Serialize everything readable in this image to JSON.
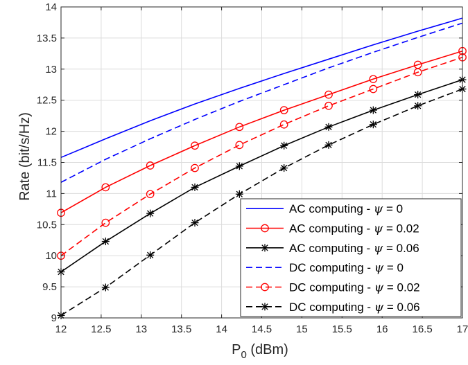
{
  "chart_data": {
    "type": "line",
    "xlabel": "P",
    "xlabel_sub": "0",
    "xlabel_unit": " (dBm)",
    "ylabel": "Rate (bit/s/Hz)",
    "xlim": [
      12,
      17
    ],
    "ylim": [
      9,
      14
    ],
    "xticks": [
      "12",
      "12.5",
      "13",
      "13.5",
      "14",
      "14.5",
      "15",
      "15.5",
      "16",
      "16.5",
      "17"
    ],
    "yticks": [
      "9",
      "9.5",
      "10",
      "10.5",
      "11",
      "11.5",
      "12",
      "12.5",
      "13",
      "13.5",
      "14"
    ],
    "grid": true,
    "legend_position": "bottom-right",
    "x": [
      12,
      12.5556,
      13.1111,
      13.6667,
      14.2222,
      14.7778,
      15.3333,
      15.8889,
      16.4444,
      17
    ],
    "series": [
      {
        "name_prefix": "AC computing - ",
        "name_symbol": "ψ",
        "name_suffix": " = 0",
        "color": "#0000ff",
        "dash": "solid",
        "marker": "none",
        "values": [
          11.58,
          11.88,
          12.17,
          12.44,
          12.69,
          12.93,
          13.16,
          13.39,
          13.61,
          13.82
        ]
      },
      {
        "name_prefix": "AC computing - ",
        "name_symbol": "ψ",
        "name_suffix": " = 0.02",
        "color": "#ff0000",
        "dash": "solid",
        "marker": "circle",
        "values": [
          10.69,
          11.1,
          11.45,
          11.77,
          12.07,
          12.34,
          12.59,
          12.84,
          13.07,
          13.29
        ]
      },
      {
        "name_prefix": "AC computing - ",
        "name_symbol": "ψ",
        "name_suffix": " = 0.06",
        "color": "#000000",
        "dash": "solid",
        "marker": "asterisk",
        "values": [
          9.74,
          10.23,
          10.68,
          11.1,
          11.44,
          11.77,
          12.07,
          12.34,
          12.59,
          12.83
        ]
      },
      {
        "name_prefix": "DC computing - ",
        "name_symbol": "ψ",
        "name_suffix": " = 0",
        "color": "#0000ff",
        "dash": "dashed",
        "marker": "none",
        "values": [
          11.18,
          11.55,
          11.88,
          12.19,
          12.48,
          12.75,
          13.02,
          13.27,
          13.51,
          13.74
        ]
      },
      {
        "name_prefix": "DC computing - ",
        "name_symbol": "ψ",
        "name_suffix": " = 0.02",
        "color": "#ff0000",
        "dash": "dashed",
        "marker": "circle",
        "values": [
          10.0,
          10.53,
          10.99,
          11.41,
          11.78,
          12.11,
          12.41,
          12.68,
          12.95,
          13.19
        ]
      },
      {
        "name_prefix": "DC computing - ",
        "name_symbol": "ψ",
        "name_suffix": " = 0.06",
        "color": "#000000",
        "dash": "dashed",
        "marker": "asterisk",
        "values": [
          9.04,
          9.49,
          10.01,
          10.53,
          10.99,
          11.41,
          11.78,
          12.11,
          12.41,
          12.68
        ]
      }
    ]
  }
}
